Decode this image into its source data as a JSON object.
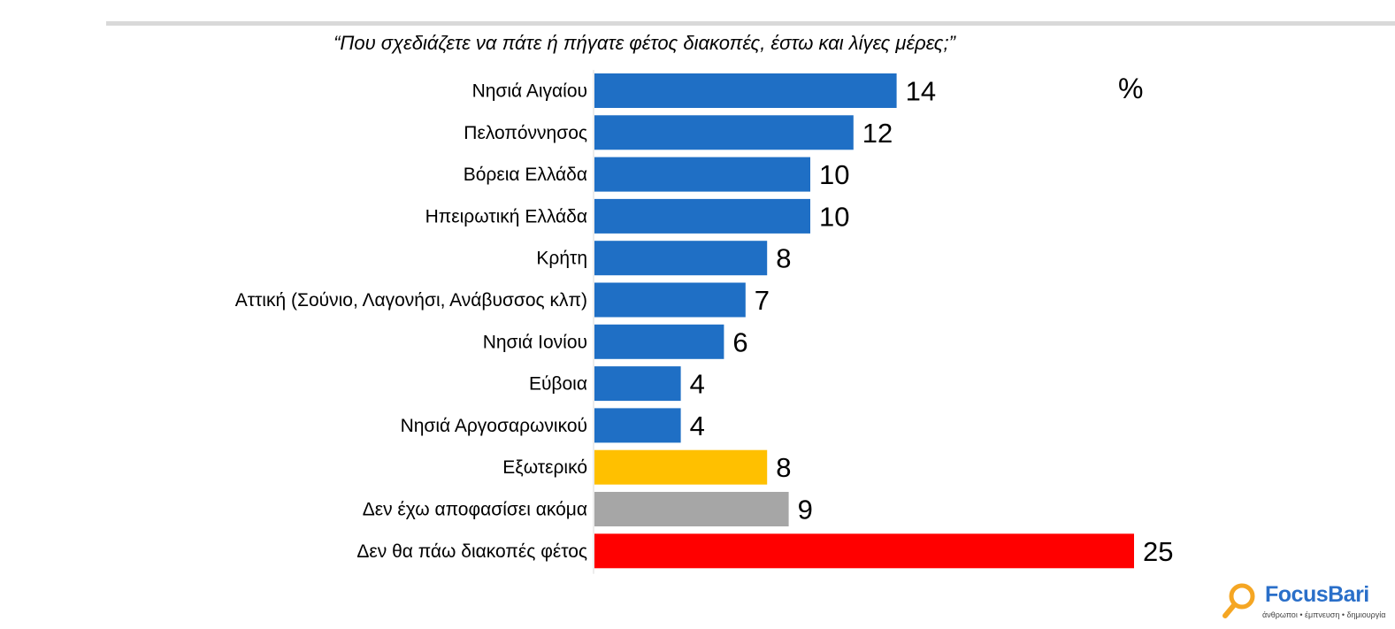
{
  "chart_data": {
    "type": "bar",
    "orientation": "horizontal",
    "title": "“Που σχεδιάζετε να πάτε ή πήγατε φέτος διακοπές, έστω και λίγες μέρες;”",
    "unit_label": "%",
    "categories": [
      "Νησιά Αιγαίου",
      "Πελοπόννησος",
      "Βόρεια Ελλάδα",
      "Ηπειρωτική Ελλάδα",
      "Κρήτη",
      "Αττική (Σούνιο, Λαγονήσι, Ανάβυσσος κλπ)",
      "Νησιά Ιονίου",
      "Εύβοια",
      "Νησιά Αργοσαρωνικού",
      "Εξωτερικό",
      "Δεν έχω αποφασίσει ακόμα",
      "Δεν θα πάω διακοπές φέτος"
    ],
    "values": [
      14,
      12,
      10,
      10,
      8,
      7,
      6,
      4,
      4,
      8,
      9,
      25
    ],
    "colors": [
      "#1f6fc5",
      "#1f6fc5",
      "#1f6fc5",
      "#1f6fc5",
      "#1f6fc5",
      "#1f6fc5",
      "#1f6fc5",
      "#1f6fc5",
      "#1f6fc5",
      "#ffc000",
      "#a6a6a6",
      "#ff0000"
    ],
    "xlim": [
      0,
      25
    ],
    "grid": false,
    "legend": "none"
  },
  "logo": {
    "name": "FocusBari",
    "tagline": "άνθρωποι • έμπνευση • δημιουργία"
  }
}
